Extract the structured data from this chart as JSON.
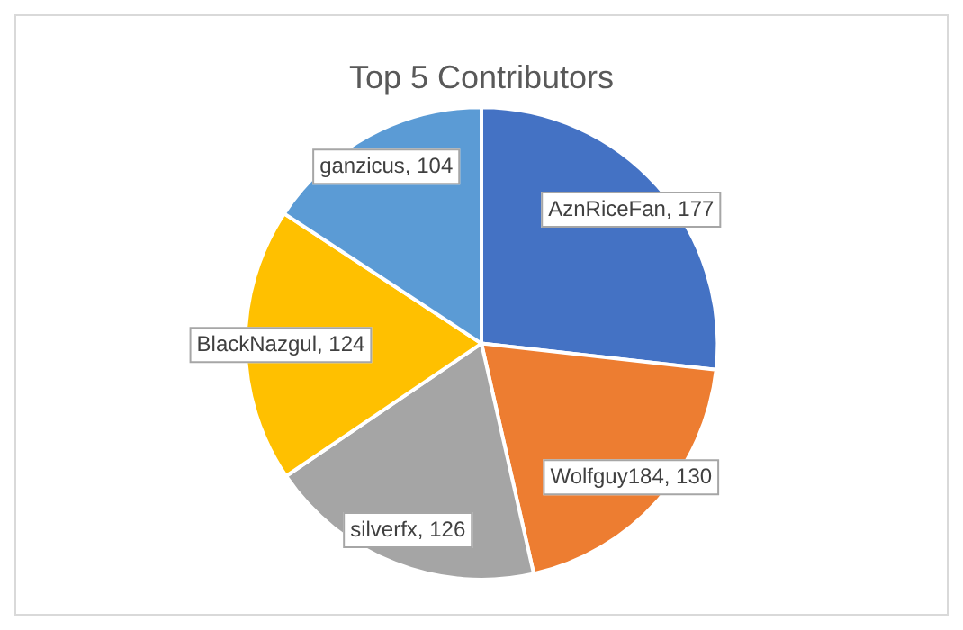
{
  "chart_data": {
    "type": "pie",
    "title": "Top 5 Contributors",
    "categories": [
      "AznRiceFan",
      "Wolfguy184",
      "silverfx",
      "BlackNazgul",
      "ganzicus"
    ],
    "values": [
      177,
      130,
      126,
      124,
      104
    ],
    "value_labels": [
      ", 177",
      ", 130",
      ", 126",
      ", 124",
      ", 104"
    ],
    "colors": [
      "#4472c4",
      "#ed7d31",
      "#a5a5a5",
      "#ffc000",
      "#5b9bd5"
    ],
    "legend": false
  }
}
